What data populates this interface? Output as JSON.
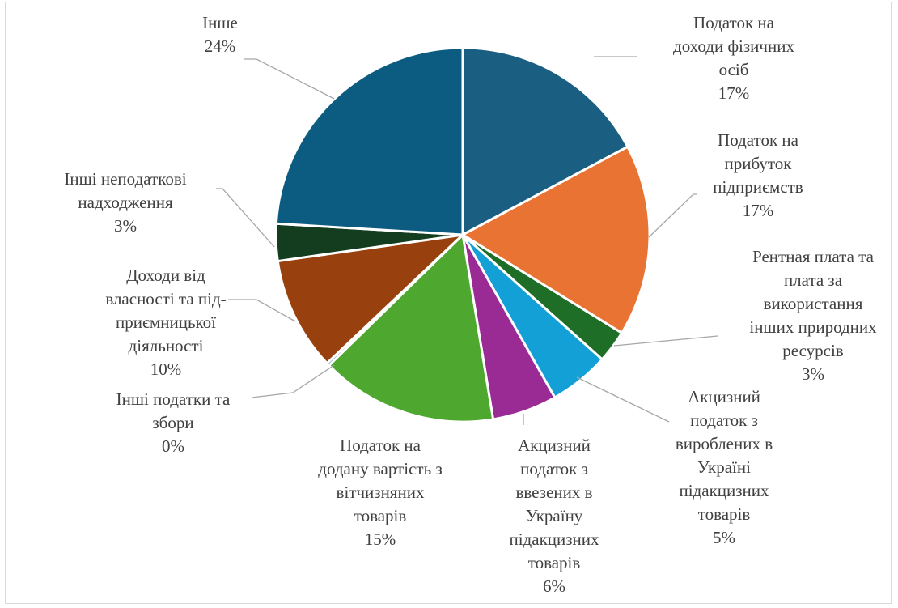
{
  "chart_data": {
    "type": "pie",
    "slices": [
      {
        "lines": [
          "Податок на",
          "доходи фізичних",
          "осіб"
        ],
        "pct": "17%",
        "value": 17.2,
        "color": "#1a5e82"
      },
      {
        "lines": [
          "Податок на",
          "прибуток",
          "підприємств"
        ],
        "pct": "17%",
        "value": 16.6,
        "color": "#e97333"
      },
      {
        "lines": [
          "Рентная плата та",
          "плата за",
          "використання",
          "інших природних",
          "ресурсів"
        ],
        "pct": "3%",
        "value": 2.8,
        "color": "#1e6e27"
      },
      {
        "lines": [
          "Акцизний",
          "податок з",
          "вироблених в",
          "Україні",
          "підакцизних",
          "товарів"
        ],
        "pct": "5%",
        "value": 5.2,
        "color": "#13a0d6"
      },
      {
        "lines": [
          "Акцизний",
          "податок з",
          "ввезених в",
          "Україну",
          "підакцизних",
          "товарів"
        ],
        "pct": "6%",
        "value": 5.6,
        "color": "#9a2b95"
      },
      {
        "lines": [
          "Податок на",
          "додану вартість з",
          "вітчизняних",
          "товарів"
        ],
        "pct": "15%",
        "value": 15.3,
        "color": "#4ea72f"
      },
      {
        "lines": [
          "Інші податки та",
          "збори"
        ],
        "pct": "0%",
        "value": 0.25,
        "color": "#4f7ea8"
      },
      {
        "lines": [
          "Доходи від",
          "власності та під-",
          "приємницької",
          "діяльності"
        ],
        "pct": "10%",
        "value": 9.8,
        "color": "#98400e"
      },
      {
        "lines": [
          "Інші неподаткові",
          "надходження"
        ],
        "pct": "3%",
        "value": 3.2,
        "color": "#143d20"
      },
      {
        "lines": [
          "Інше"
        ],
        "pct": "24%",
        "value": 24.05,
        "color": "#0b5c80"
      }
    ]
  }
}
